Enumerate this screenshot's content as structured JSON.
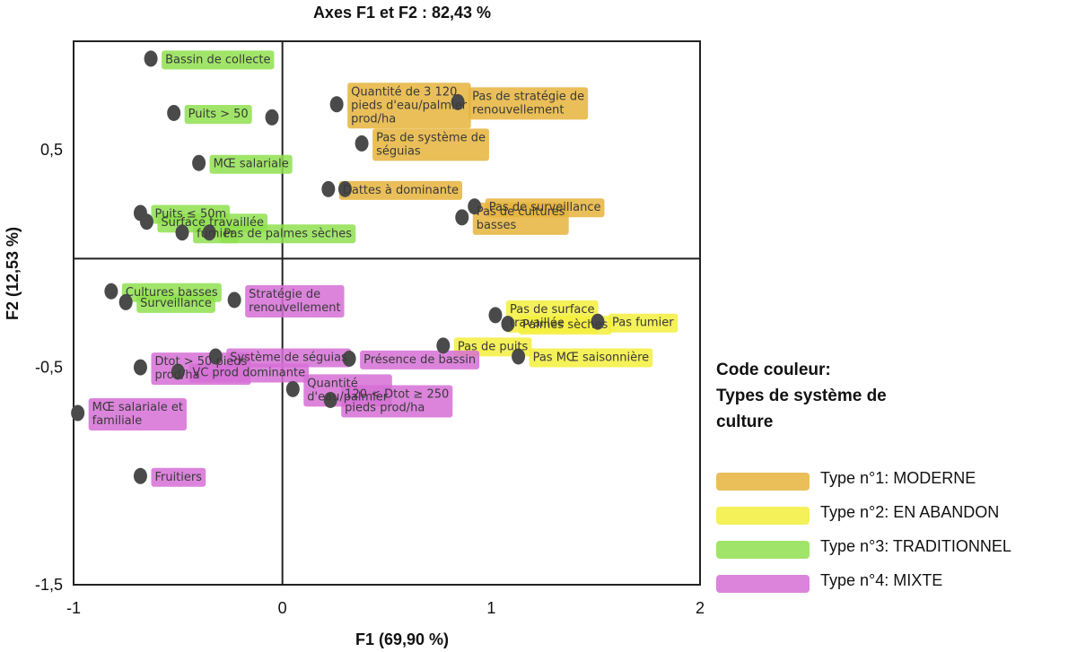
{
  "chart_data": {
    "type": "scatter",
    "title": "Axes F1 et F2 : 82,43 %",
    "xlabel": "F1 (69,90 %)",
    "ylabel": "F2 (12,53 %)",
    "xlim": [
      -1,
      2
    ],
    "ylim": [
      -1.5,
      1
    ],
    "xticks": [
      {
        "v": -1,
        "label": "-1"
      },
      {
        "v": 0,
        "label": "0"
      },
      {
        "v": 1,
        "label": "1"
      },
      {
        "v": 2,
        "label": "2"
      }
    ],
    "yticks": [
      {
        "v": 0.5,
        "label": "0,5"
      },
      {
        "v": -0.5,
        "label": "-0,5"
      },
      {
        "v": -1.5,
        "label": "-1,5"
      }
    ],
    "points": [
      {
        "x": -0.63,
        "y": 0.92,
        "group": 3,
        "label": "Bassin de collecte"
      },
      {
        "x": -0.52,
        "y": 0.67,
        "group": 3,
        "label": "Puits > 50"
      },
      {
        "x": -0.05,
        "y": 0.65,
        "group": 3,
        "label": ""
      },
      {
        "x": -0.4,
        "y": 0.44,
        "group": 3,
        "label": "MŒ salariale"
      },
      {
        "x": -0.68,
        "y": 0.21,
        "group": 3,
        "label": "Puits ≤ 50m"
      },
      {
        "x": -0.65,
        "y": 0.17,
        "group": 3,
        "label": "Surface travaillée"
      },
      {
        "x": -0.48,
        "y": 0.12,
        "group": 3,
        "label": "fumier"
      },
      {
        "x": -0.35,
        "y": 0.12,
        "group": 3,
        "label": "Pas de palmes sèches"
      },
      {
        "x": 0.26,
        "y": 0.71,
        "group": 1,
        "label": "Quantité de 3 120 pieds d'eau/palmier prod/ha"
      },
      {
        "x": 0.84,
        "y": 0.72,
        "group": 1,
        "label": "Pas de stratégie de renouvellement"
      },
      {
        "x": 0.38,
        "y": 0.53,
        "group": 1,
        "label": "Pas de système de séguias"
      },
      {
        "x": 0.22,
        "y": 0.32,
        "group": 1,
        "label": "Dattes à dominante"
      },
      {
        "x": 0.3,
        "y": 0.32,
        "group": 1,
        "label": ""
      },
      {
        "x": 0.92,
        "y": 0.24,
        "group": 1,
        "label": "Pas de surveillance"
      },
      {
        "x": 0.86,
        "y": 0.19,
        "group": 1,
        "label": "Pas de cultures basses"
      },
      {
        "x": -0.82,
        "y": -0.15,
        "group": 3,
        "label": "Cultures basses"
      },
      {
        "x": -0.75,
        "y": -0.2,
        "group": 3,
        "label": "Surveillance"
      },
      {
        "x": -0.23,
        "y": -0.19,
        "group": 4,
        "label": "Stratégie de renouvellement"
      },
      {
        "x": 1.02,
        "y": -0.26,
        "group": 2,
        "label": "Pas de surface travaillée"
      },
      {
        "x": 1.08,
        "y": -0.3,
        "group": 2,
        "label": "Palmes sèches"
      },
      {
        "x": 1.51,
        "y": -0.29,
        "group": 2,
        "label": "Pas fumier"
      },
      {
        "x": 0.77,
        "y": -0.4,
        "group": 2,
        "label": "Pas de puits"
      },
      {
        "x": 1.13,
        "y": -0.45,
        "group": 2,
        "label": "Pas MŒ saisonnière"
      },
      {
        "x": -0.32,
        "y": -0.45,
        "group": 4,
        "label": "Système de séguias"
      },
      {
        "x": -0.68,
        "y": -0.5,
        "group": 4,
        "label": "Dtot > 50 pieds prod/ha"
      },
      {
        "x": -0.5,
        "y": -0.52,
        "group": 4,
        "label": "VC prod dominante"
      },
      {
        "x": 0.32,
        "y": -0.46,
        "group": 4,
        "label": "Présence de bassin"
      },
      {
        "x": 0.05,
        "y": -0.6,
        "group": 4,
        "label": "Quantité d'eau/palmier"
      },
      {
        "x": 0.23,
        "y": -0.65,
        "group": 4,
        "label": "120 < Dtot ≥ 250 pieds prod/ha"
      },
      {
        "x": -0.98,
        "y": -0.71,
        "group": 4,
        "label": "MŒ salariale et familiale"
      },
      {
        "x": -0.68,
        "y": -1.0,
        "group": 4,
        "label": "Fruitiers"
      }
    ]
  },
  "legend": {
    "title_lines": [
      "Code couleur:",
      "Types de système de",
      "culture"
    ],
    "items": [
      {
        "label": "Type n°1: MODERNE",
        "color": "#e6b43c"
      },
      {
        "label": "Type n°2: EN ABANDON",
        "color": "#f3ee3c"
      },
      {
        "label": "Type n°3: TRADITIONNEL",
        "color": "#8fe04f"
      },
      {
        "label": "Type n°4: MIXTE",
        "color": "#d66fd6"
      }
    ]
  },
  "colors": {
    "group1": "#e6b43c",
    "group2": "#f3ee3c",
    "group3": "#8fe04f",
    "group4": "#d66fd6",
    "marker": "#4a4a4a"
  }
}
